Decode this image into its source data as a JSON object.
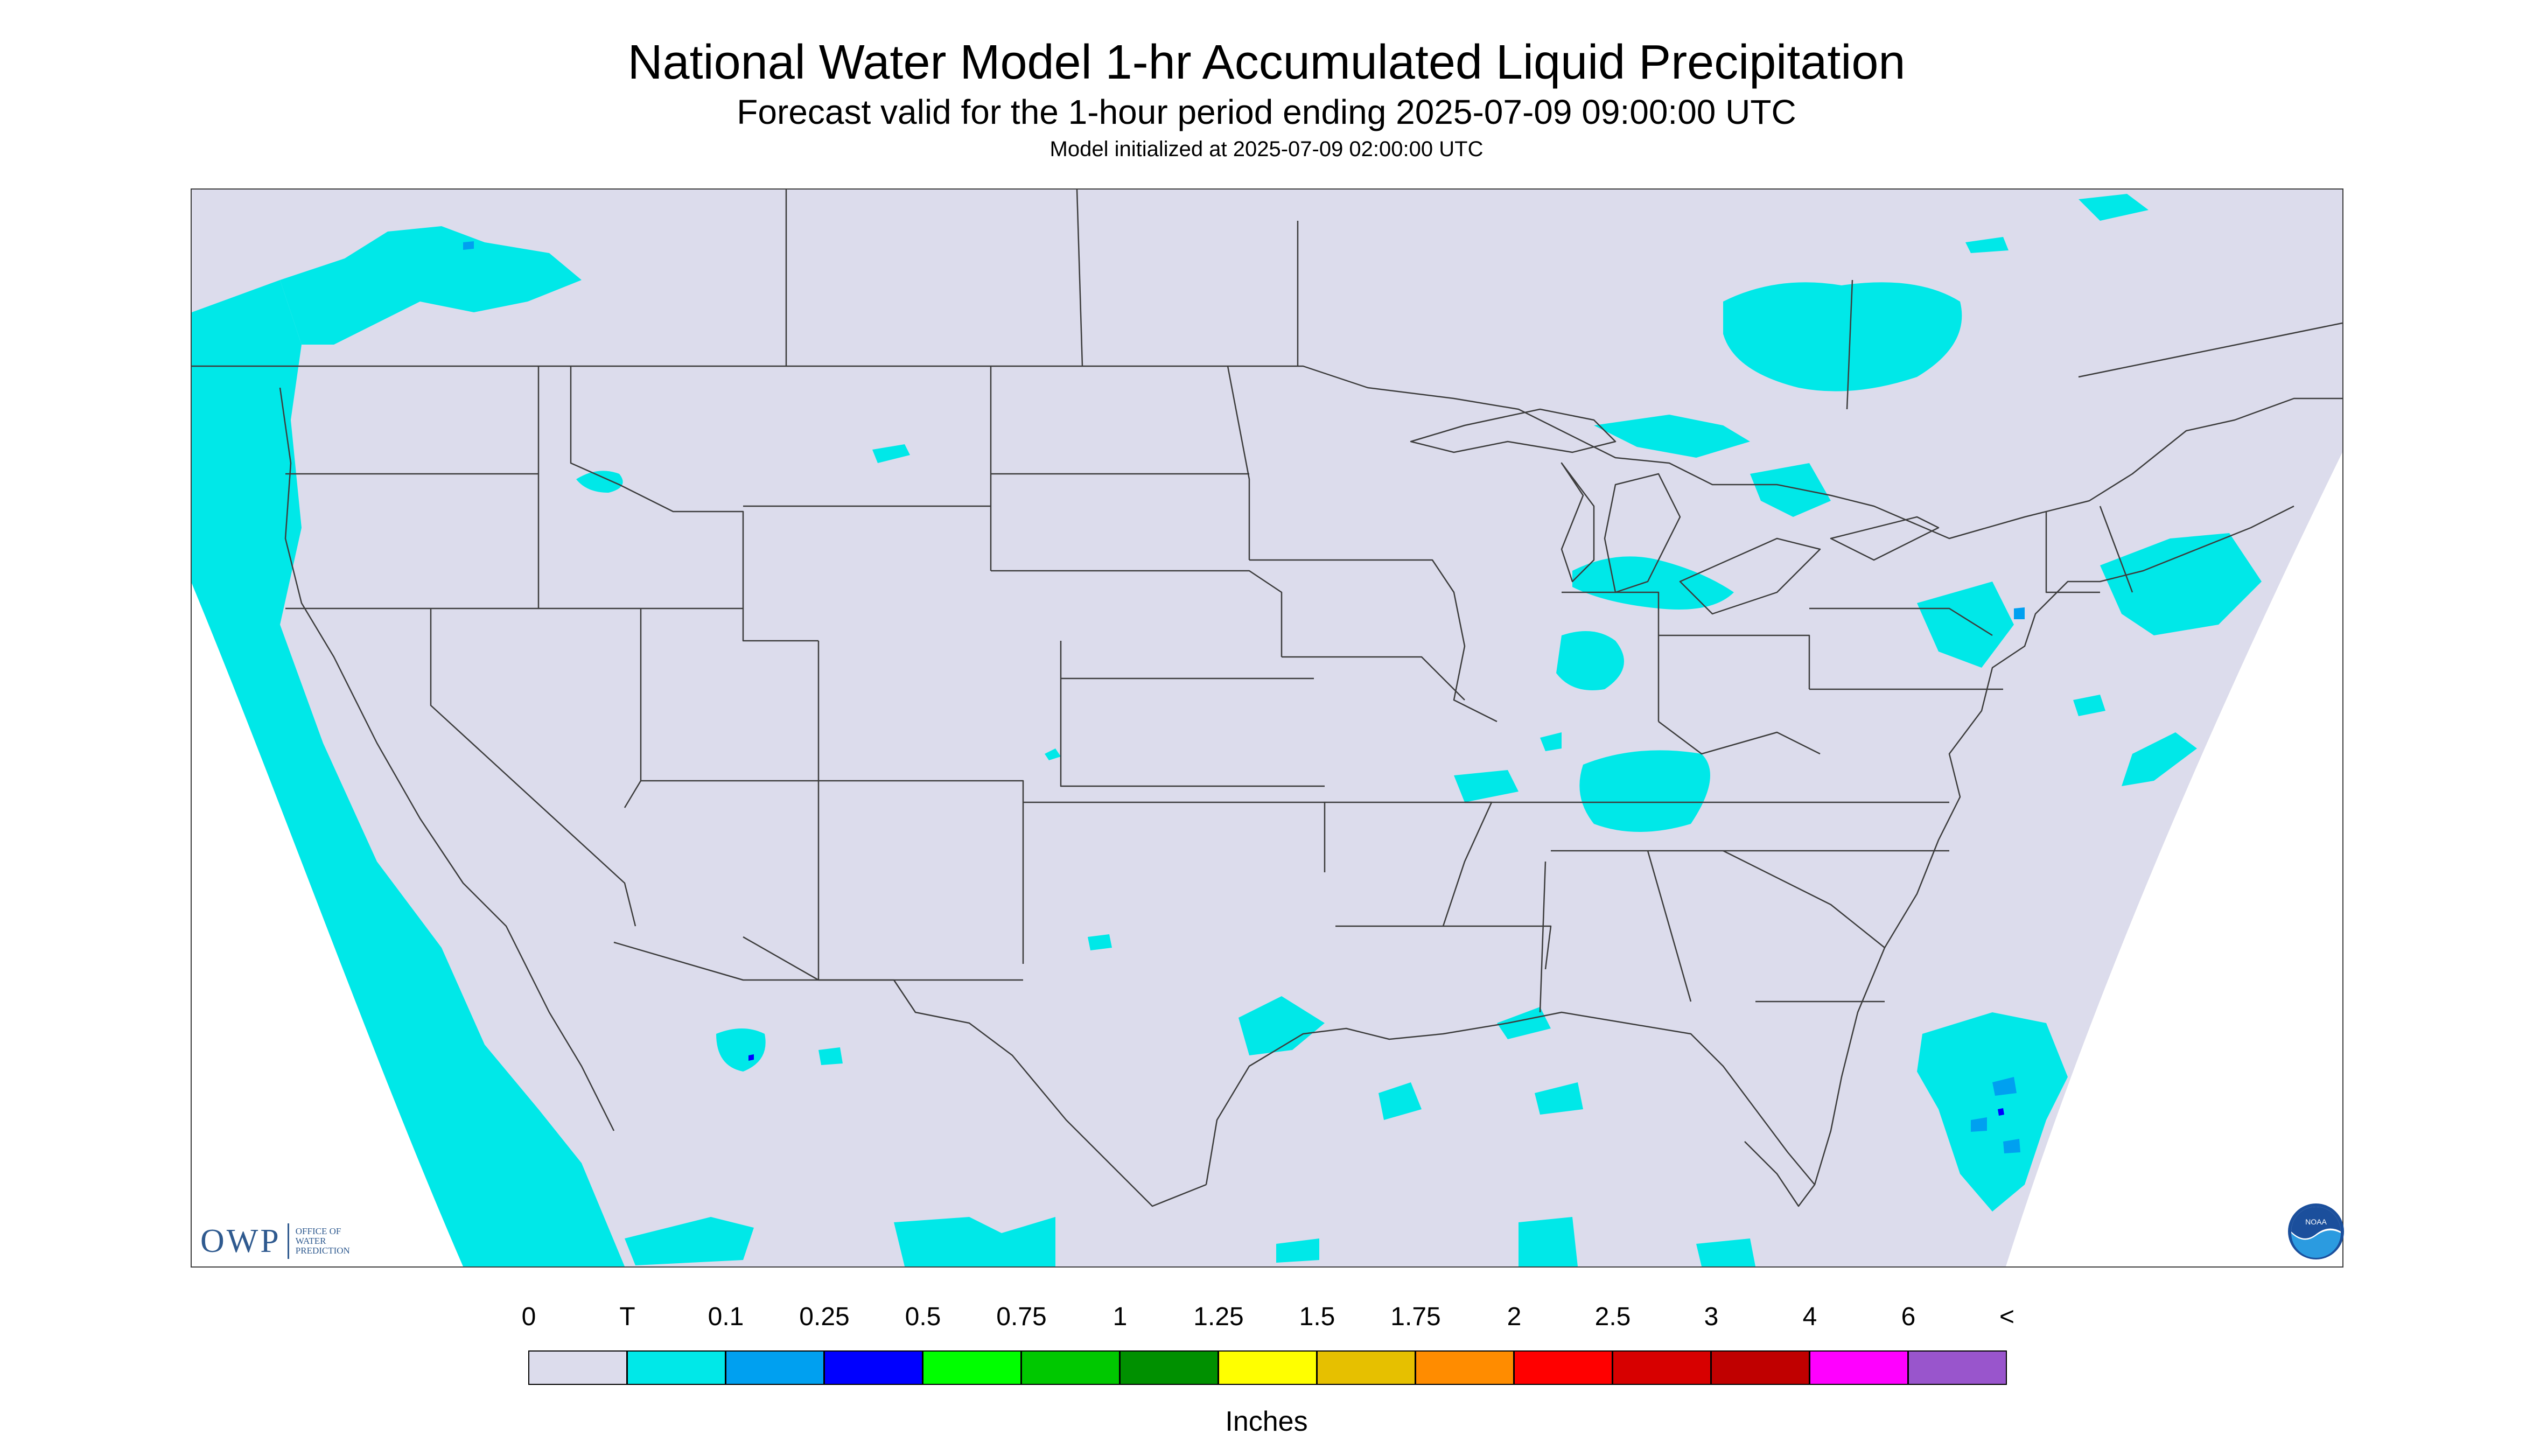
{
  "header": {
    "title": "National Water Model 1-hr Accumulated Liquid Precipitation",
    "subtitle": "Forecast valid for the 1-hour period ending 2025-07-09 09:00:00 UTC",
    "init": "Model initialized at 2025-07-09 02:00:00 UTC"
  },
  "colors": {
    "background": "#dcdcec",
    "precip_light": "#00e8e8",
    "precip_mid": "#00a0f0",
    "precip_heavy": "#0000ff",
    "border": "#3c3c3c"
  },
  "logos": {
    "owp_big": "OWP",
    "owp_small": [
      "OFFICE OF",
      "WATER",
      "PREDICTION"
    ],
    "noaa": "NOAA"
  },
  "legend": {
    "labels": [
      "0",
      "T",
      "0.1",
      "0.25",
      "0.5",
      "0.75",
      "1",
      "1.25",
      "1.5",
      "1.75",
      "2",
      "2.5",
      "3",
      "4",
      "6",
      "<"
    ],
    "colors": [
      "#dcdcec",
      "#00e8e8",
      "#00a0f0",
      "#0000ff",
      "#00ff00",
      "#00c800",
      "#009000",
      "#ffff00",
      "#e6c000",
      "#ff8c00",
      "#ff0000",
      "#d70000",
      "#c00000",
      "#ff00ff",
      "#9955cc"
    ],
    "units": "Inches"
  },
  "map_icons": [
    "precipitation-field-icon",
    "state-boundary-icon"
  ]
}
